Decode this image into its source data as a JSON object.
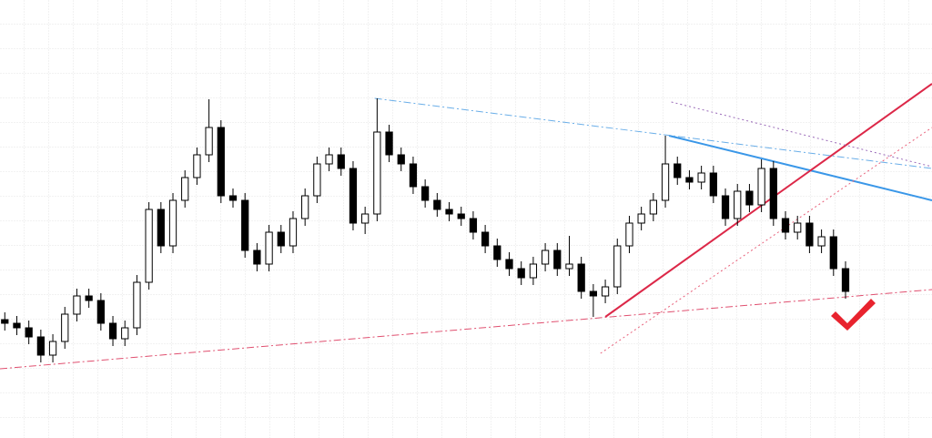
{
  "chart_data": {
    "type": "candlestick",
    "xlim": [
      -0.4,
      77.2
    ],
    "ylim": [
      0,
      481
    ],
    "grid": true,
    "up_color": "#ffffff",
    "down_color": "#000000",
    "edge_color": "#000000",
    "open": [
      130,
      126,
      121,
      111,
      91,
      106,
      136,
      156,
      151,
      126,
      109,
      121,
      171,
      251,
      211,
      261,
      286,
      311,
      341,
      266,
      261,
      206,
      191,
      226,
      211,
      241,
      266,
      301,
      311,
      296,
      236,
      246,
      336,
      311,
      301,
      276,
      261,
      251,
      246,
      241,
      226,
      211,
      196,
      186,
      176,
      191,
      206,
      186,
      191,
      161,
      156,
      166,
      211,
      236,
      246,
      261,
      301,
      286,
      281,
      291,
      266,
      241,
      271,
      256,
      296,
      241,
      226,
      236,
      211,
      221,
      186
    ],
    "high": [
      138,
      134,
      129,
      119,
      114,
      144,
      164,
      164,
      159,
      134,
      129,
      179,
      259,
      259,
      269,
      294,
      319,
      372,
      349,
      274,
      269,
      214,
      234,
      234,
      249,
      274,
      309,
      319,
      319,
      304,
      254,
      373,
      344,
      319,
      309,
      284,
      269,
      259,
      254,
      249,
      234,
      219,
      204,
      194,
      199,
      214,
      214,
      222,
      199,
      169,
      174,
      219,
      244,
      254,
      269,
      332,
      309,
      294,
      299,
      299,
      274,
      279,
      279,
      306,
      304,
      249,
      244,
      244,
      229,
      229,
      194
    ],
    "low": [
      118,
      113,
      103,
      83,
      83,
      98,
      128,
      143,
      118,
      101,
      101,
      113,
      163,
      203,
      203,
      253,
      278,
      303,
      258,
      253,
      198,
      183,
      183,
      203,
      203,
      233,
      258,
      293,
      288,
      228,
      224,
      238,
      303,
      293,
      268,
      253,
      243,
      238,
      233,
      218,
      203,
      188,
      178,
      168,
      168,
      183,
      178,
      178,
      153,
      133,
      148,
      158,
      203,
      228,
      238,
      253,
      278,
      273,
      273,
      258,
      233,
      233,
      248,
      248,
      233,
      218,
      218,
      203,
      203,
      178,
      153
    ],
    "close": [
      126,
      121,
      111,
      91,
      106,
      136,
      156,
      151,
      126,
      109,
      121,
      171,
      251,
      211,
      261,
      286,
      311,
      341,
      266,
      261,
      206,
      191,
      226,
      211,
      241,
      266,
      301,
      311,
      296,
      236,
      246,
      336,
      311,
      301,
      276,
      261,
      251,
      246,
      241,
      226,
      211,
      196,
      186,
      176,
      191,
      206,
      186,
      191,
      161,
      156,
      166,
      211,
      236,
      246,
      261,
      301,
      286,
      281,
      291,
      266,
      241,
      271,
      256,
      296,
      241,
      226,
      236,
      211,
      221,
      186,
      161
    ],
    "lines": [
      {
        "color": "#3a97e8",
        "style": "solid",
        "width": 2,
        "x": [
          55.3,
          77.2
        ],
        "y": [
          332,
          261
        ]
      },
      {
        "color": "#dc2848",
        "style": "solid",
        "width": 2,
        "x": [
          50,
          77.2
        ],
        "y": [
          133,
          389
        ]
      },
      {
        "color": "#e8607a",
        "style": "dotted",
        "width": 1,
        "x": [
          49.6,
          77.2
        ],
        "y": [
          93,
          341
        ]
      },
      {
        "color": "#e05070",
        "style": "dashdot",
        "width": 1,
        "x": [
          -0.4,
          77.2
        ],
        "y": [
          76,
          163
        ]
      },
      {
        "color": "#6aaee8",
        "style": "dashdot",
        "width": 1,
        "x": [
          30.8,
          77.2
        ],
        "y": [
          373,
          296
        ]
      },
      {
        "color": "#9a6ab8",
        "style": "dotted",
        "width": 1,
        "x": [
          55.5,
          77.2
        ],
        "y": [
          369,
          298
        ]
      }
    ]
  }
}
